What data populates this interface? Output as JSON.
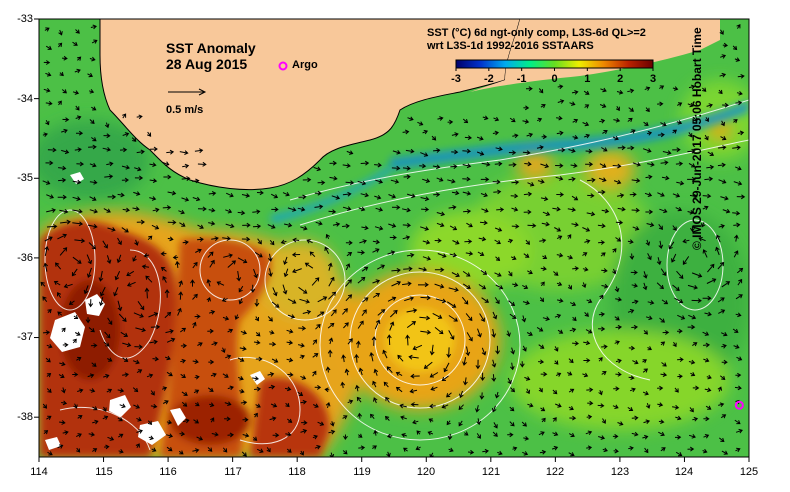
{
  "map_title": "SST Anomaly",
  "map_date": "28 Aug 2015",
  "legend_argo_label": "Argo",
  "scale_arrow_label": "0.5 m/s",
  "product_line1": "SST (°C) 6d ngt-only comp, L3S-6d QL>=2",
  "product_line2": "wrt L3S-1d 1992-2016 SSTAARS",
  "credit": "© IMOS 29-Jun-2017 05:06 Hobart Time",
  "colorbar": {
    "ticks": [
      "-3",
      "-2",
      "-1",
      "0",
      "1",
      "2",
      "3"
    ],
    "min": -3,
    "max": 3,
    "colors": [
      "#00006a",
      "#0033cc",
      "#00aaee",
      "#00ee88",
      "#66dd22",
      "#eeee00",
      "#ee8800",
      "#bb2200",
      "#6a0000"
    ]
  },
  "axes": {
    "x_ticks": [
      "114",
      "115",
      "116",
      "117",
      "118",
      "119",
      "120",
      "121",
      "122",
      "123",
      "124",
      "125"
    ],
    "y_ticks": [
      "-33",
      "-34",
      "-35",
      "-36",
      "-37",
      "-38"
    ],
    "lon_range": [
      114,
      125
    ],
    "lat_range": [
      -38.5,
      -33
    ]
  },
  "colors": {
    "land": "#f8c89a",
    "ocean_base": "#4cc046",
    "warm": "#e29a16",
    "hot": "#a82a08",
    "argo": "#ff00ff"
  },
  "argo_floats": [
    {
      "lon": 124.85,
      "lat": -37.85
    }
  ]
}
